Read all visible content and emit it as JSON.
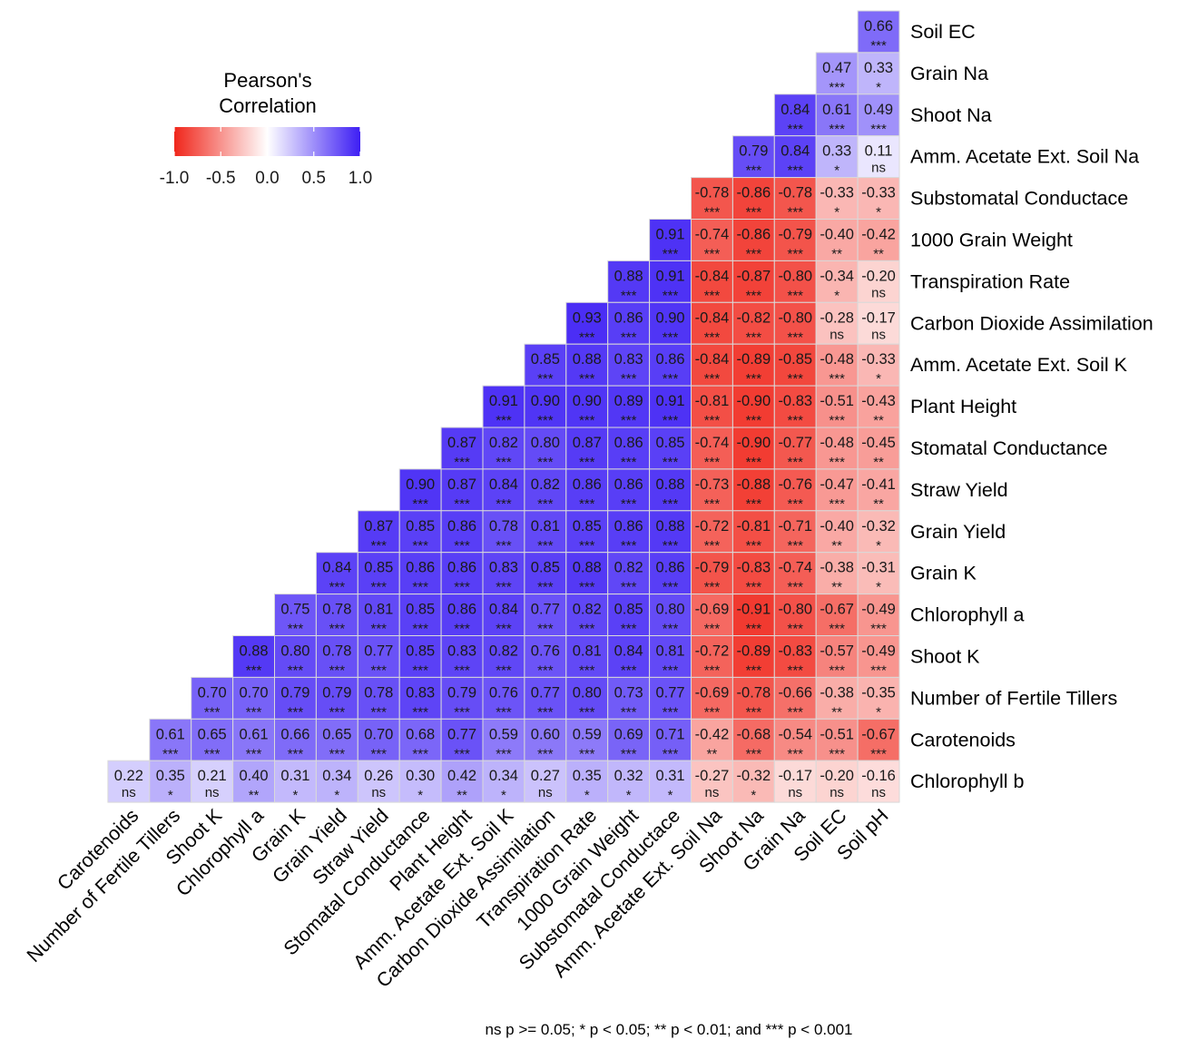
{
  "chart_data": {
    "type": "heatmap",
    "variables": [
      "Carotenoids",
      "Number of Fertile Tillers",
      "Shoot K",
      "Chlorophyll a",
      "Grain K",
      "Grain Yield",
      "Straw Yield",
      "Stomatal Conductance",
      "Plant Height",
      "Amm. Acetate Ext. Soil K",
      "Carbon Dioxide Assimilation",
      "Transpiration Rate",
      "1000 Grain Weight",
      "Substomatal Conductace",
      "Amm. Acetate Ext. Soil Na",
      "Shoot Na",
      "Grain Na",
      "Soil EC",
      "Soil pH"
    ],
    "row_labels": [
      "Soil EC",
      "Grain Na",
      "Shoot Na",
      "Amm. Acetate Ext. Soil Na",
      "Substomatal Conductace",
      "1000 Grain Weight",
      "Transpiration Rate",
      "Carbon Dioxide Assimilation",
      "Amm. Acetate Ext. Soil K",
      "Plant Height",
      "Stomatal Conductance",
      "Straw Yield",
      "Grain Yield",
      "Grain K",
      "Chlorophyll a",
      "Shoot K",
      "Number of Fertile Tillers",
      "Carotenoids",
      "Chlorophyll b"
    ],
    "values": [
      [
        "0.66"
      ],
      [
        "0.47",
        "0.33"
      ],
      [
        "0.84",
        "0.61",
        "0.49"
      ],
      [
        "0.79",
        "0.84",
        "0.33",
        "0.11"
      ],
      [
        "-0.78",
        "-0.86",
        "-0.78",
        "-0.33",
        "-0.33"
      ],
      [
        "0.91",
        "-0.74",
        "-0.86",
        "-0.79",
        "-0.40",
        "-0.42"
      ],
      [
        "0.88",
        "0.91",
        "-0.84",
        "-0.87",
        "-0.80",
        "-0.34",
        "-0.20"
      ],
      [
        "0.93",
        "0.86",
        "0.90",
        "-0.84",
        "-0.82",
        "-0.80",
        "-0.28",
        "-0.17"
      ],
      [
        "0.85",
        "0.88",
        "0.83",
        "0.86",
        "-0.84",
        "-0.89",
        "-0.85",
        "-0.48",
        "-0.33"
      ],
      [
        "0.91",
        "0.90",
        "0.90",
        "0.89",
        "0.91",
        "-0.81",
        "-0.90",
        "-0.83",
        "-0.51",
        "-0.43"
      ],
      [
        "0.87",
        "0.82",
        "0.80",
        "0.87",
        "0.86",
        "0.85",
        "-0.74",
        "-0.90",
        "-0.77",
        "-0.48",
        "-0.45"
      ],
      [
        "0.90",
        "0.87",
        "0.84",
        "0.82",
        "0.86",
        "0.86",
        "0.88",
        "-0.73",
        "-0.88",
        "-0.76",
        "-0.47",
        "-0.41"
      ],
      [
        "0.87",
        "0.85",
        "0.86",
        "0.78",
        "0.81",
        "0.85",
        "0.86",
        "0.88",
        "-0.72",
        "-0.81",
        "-0.71",
        "-0.40",
        "-0.32"
      ],
      [
        "0.84",
        "0.85",
        "0.86",
        "0.86",
        "0.83",
        "0.85",
        "0.88",
        "0.82",
        "0.86",
        "-0.79",
        "-0.83",
        "-0.74",
        "-0.38",
        "-0.31"
      ],
      [
        "0.75",
        "0.78",
        "0.81",
        "0.85",
        "0.86",
        "0.84",
        "0.77",
        "0.82",
        "0.85",
        "0.80",
        "-0.69",
        "-0.91",
        "-0.80",
        "-0.67",
        "-0.49"
      ],
      [
        "0.88",
        "0.80",
        "0.78",
        "0.77",
        "0.85",
        "0.83",
        "0.82",
        "0.76",
        "0.81",
        "0.84",
        "0.81",
        "-0.72",
        "-0.89",
        "-0.83",
        "-0.57",
        "-0.49"
      ],
      [
        "0.70",
        "0.70",
        "0.79",
        "0.79",
        "0.78",
        "0.83",
        "0.79",
        "0.76",
        "0.77",
        "0.80",
        "0.73",
        "0.77",
        "-0.69",
        "-0.78",
        "-0.66",
        "-0.38",
        "-0.35"
      ],
      [
        "0.61",
        "0.65",
        "0.61",
        "0.66",
        "0.65",
        "0.70",
        "0.68",
        "0.77",
        "0.59",
        "0.60",
        "0.59",
        "0.69",
        "0.71",
        "-0.42",
        "-0.68",
        "-0.54",
        "-0.51",
        "-0.67"
      ],
      [
        "0.22",
        "0.35",
        "0.21",
        "0.40",
        "0.31",
        "0.34",
        "0.26",
        "0.30",
        "0.42",
        "0.34",
        "0.27",
        "0.35",
        "0.32",
        "0.31",
        "-0.27",
        "-0.32",
        "-0.17",
        "-0.20",
        "-0.16"
      ]
    ],
    "significance": [
      [
        "***"
      ],
      [
        "***",
        "*"
      ],
      [
        "***",
        "***",
        "***"
      ],
      [
        "***",
        "***",
        "*",
        "ns"
      ],
      [
        "***",
        "***",
        "***",
        "*",
        "*"
      ],
      [
        "***",
        "***",
        "***",
        "***",
        "**",
        "**"
      ],
      [
        "***",
        "***",
        "***",
        "***",
        "***",
        "*",
        "ns"
      ],
      [
        "***",
        "***",
        "***",
        "***",
        "***",
        "***",
        "ns",
        "ns"
      ],
      [
        "***",
        "***",
        "***",
        "***",
        "***",
        "***",
        "***",
        "***",
        "*"
      ],
      [
        "***",
        "***",
        "***",
        "***",
        "***",
        "***",
        "***",
        "***",
        "***",
        "**"
      ],
      [
        "***",
        "***",
        "***",
        "***",
        "***",
        "***",
        "***",
        "***",
        "***",
        "***",
        "**"
      ],
      [
        "***",
        "***",
        "***",
        "***",
        "***",
        "***",
        "***",
        "***",
        "***",
        "***",
        "***",
        "**"
      ],
      [
        "***",
        "***",
        "***",
        "***",
        "***",
        "***",
        "***",
        "***",
        "***",
        "***",
        "***",
        "**",
        "*"
      ],
      [
        "***",
        "***",
        "***",
        "***",
        "***",
        "***",
        "***",
        "***",
        "***",
        "***",
        "***",
        "***",
        "**",
        "*"
      ],
      [
        "***",
        "***",
        "***",
        "***",
        "***",
        "***",
        "***",
        "***",
        "***",
        "***",
        "***",
        "***",
        "***",
        "***",
        "***"
      ],
      [
        "***",
        "***",
        "***",
        "***",
        "***",
        "***",
        "***",
        "***",
        "***",
        "***",
        "***",
        "***",
        "***",
        "***",
        "***",
        "***"
      ],
      [
        "***",
        "***",
        "***",
        "***",
        "***",
        "***",
        "***",
        "***",
        "***",
        "***",
        "***",
        "***",
        "***",
        "***",
        "***",
        "**",
        "*"
      ],
      [
        "***",
        "***",
        "***",
        "***",
        "***",
        "***",
        "***",
        "***",
        "***",
        "***",
        "***",
        "***",
        "***",
        "**",
        "***",
        "***",
        "***",
        "***"
      ],
      [
        "ns",
        "*",
        "ns",
        "**",
        "*",
        "*",
        "ns",
        "*",
        "**",
        "*",
        "ns",
        "*",
        "*",
        "*",
        "ns",
        "*",
        "ns",
        "ns",
        "ns"
      ]
    ],
    "legend": {
      "title": "Pearson's Correlation",
      "ticks": [
        "-1.0",
        "-0.5",
        "0.0",
        "0.5",
        "1.0"
      ],
      "range": [
        -1,
        1
      ]
    },
    "colors": {
      "low": "#f0261b",
      "mid": "#ffffff",
      "high": "#3d1ef4",
      "border": "#d9d9d9"
    },
    "footnote": "ns p >= 0.05; * p < 0.05; ** p < 0.01; and *** p < 0.001"
  }
}
